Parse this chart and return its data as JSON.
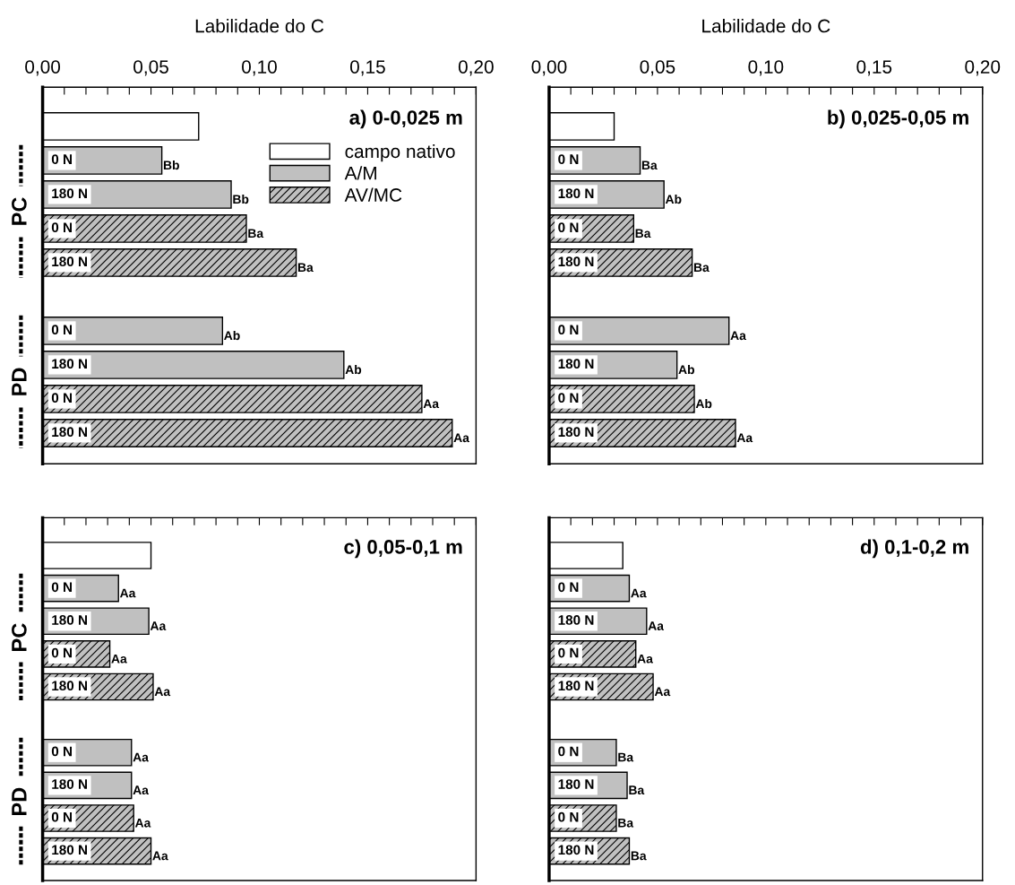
{
  "chart_data": [
    {
      "type": "bar",
      "orientation": "horizontal",
      "title": "a) 0-0,025 m",
      "xlabel": "Labilidade do C",
      "categories": [
        null,
        "0 N",
        "180 N",
        "0 N",
        "180 N",
        null,
        "0 N",
        "180 N",
        "0 N",
        "180 N"
      ],
      "series": [
        {
          "name": "campo nativo",
          "color": "#ffffff",
          "values": [
            0.072,
            null,
            null,
            null,
            null,
            null,
            null,
            null,
            null,
            null
          ]
        },
        {
          "name": "A/M",
          "color": "#c0c0c0",
          "values": [
            null,
            0.055,
            0.087,
            null,
            null,
            null,
            0.083,
            0.139,
            null,
            null
          ],
          "value_labels": [
            null,
            "Bb",
            "Bb",
            null,
            null,
            null,
            "Ab",
            "Ab",
            null,
            null
          ]
        },
        {
          "name": "AV/MC",
          "color": "#c0c0c0",
          "values": [
            null,
            null,
            null,
            0.094,
            0.117,
            null,
            null,
            null,
            0.175,
            0.189
          ],
          "value_labels": [
            null,
            null,
            null,
            "Ba",
            "Ba",
            null,
            null,
            null,
            "Aa",
            "Aa"
          ]
        }
      ],
      "xlim": [
        0,
        0.2
      ],
      "xticks": [
        {
          "value": 0,
          "label": "0,00"
        },
        {
          "value": 0.01,
          "label": null
        },
        {
          "value": 0.02,
          "label": null
        },
        {
          "value": 0.03,
          "label": null
        },
        {
          "value": 0.04,
          "label": null
        },
        {
          "value": 0.05,
          "label": "0,05"
        },
        {
          "value": 0.06,
          "label": null
        },
        {
          "value": 0.07,
          "label": null
        },
        {
          "value": 0.08,
          "label": null
        },
        {
          "value": 0.09,
          "label": null
        },
        {
          "value": 0.1,
          "label": "0,10"
        },
        {
          "value": 0.11,
          "label": null
        },
        {
          "value": 0.12,
          "label": null
        },
        {
          "value": 0.13,
          "label": null
        },
        {
          "value": 0.14,
          "label": null
        },
        {
          "value": 0.15,
          "label": "0,15"
        },
        {
          "value": 0.16,
          "label": null
        },
        {
          "value": 0.17,
          "label": null
        },
        {
          "value": 0.18,
          "label": null
        },
        {
          "value": 0.19,
          "label": null
        },
        {
          "value": 0.2,
          "label": "0,20"
        }
      ],
      "annotations": [
        "PC",
        "PD"
      ],
      "legend": "top right",
      "grid": false
    },
    {
      "type": "bar",
      "orientation": "horizontal",
      "title": "b) 0,025-0,05 m",
      "xlabel": "Labilidade do C",
      "categories": [
        null,
        "0 N",
        "180 N",
        "0 N",
        "180 N",
        null,
        "0 N",
        "180 N",
        "0 N",
        "180 N"
      ],
      "series": [
        {
          "color": "#ffffff",
          "values": [
            0.03,
            null,
            null,
            null,
            null,
            null,
            null,
            null,
            null,
            null
          ]
        },
        {
          "color": "#c0c0c0",
          "values": [
            null,
            0.042,
            0.053,
            null,
            null,
            null,
            0.083,
            0.059,
            null,
            null
          ],
          "value_labels": [
            null,
            "Ba",
            "Ab",
            null,
            null,
            null,
            "Aa",
            "Ab",
            null,
            null
          ]
        },
        {
          "color": "#c0c0c0",
          "values": [
            null,
            null,
            null,
            0.039,
            0.066,
            null,
            null,
            null,
            0.067,
            0.086
          ],
          "value_labels": [
            null,
            null,
            null,
            "Ba",
            "Ba",
            null,
            null,
            null,
            "Ab",
            "Aa"
          ]
        }
      ],
      "xlim": [
        0,
        0.2
      ],
      "xticks": [
        {
          "value": 0,
          "label": "0,00"
        },
        {
          "value": 0.01,
          "label": null
        },
        {
          "value": 0.02,
          "label": null
        },
        {
          "value": 0.03,
          "label": null
        },
        {
          "value": 0.04,
          "label": null
        },
        {
          "value": 0.05,
          "label": "0,05"
        },
        {
          "value": 0.06,
          "label": null
        },
        {
          "value": 0.07,
          "label": null
        },
        {
          "value": 0.08,
          "label": null
        },
        {
          "value": 0.09,
          "label": null
        },
        {
          "value": 0.1,
          "label": "0,10"
        },
        {
          "value": 0.11,
          "label": null
        },
        {
          "value": 0.12,
          "label": null
        },
        {
          "value": 0.13,
          "label": null
        },
        {
          "value": 0.14,
          "label": null
        },
        {
          "value": 0.15,
          "label": "0,15"
        },
        {
          "value": 0.16,
          "label": null
        },
        {
          "value": 0.17,
          "label": null
        },
        {
          "value": 0.18,
          "label": null
        },
        {
          "value": 0.19,
          "label": null
        },
        {
          "value": 0.2,
          "label": "0,20"
        }
      ],
      "grid": false
    },
    {
      "type": "bar",
      "orientation": "horizontal",
      "title": "c) 0,05-0,1 m",
      "categories": [
        null,
        "0 N",
        "180 N",
        "0 N",
        "180 N",
        null,
        "0 N",
        "180 N",
        "0 N",
        "180 N"
      ],
      "series": [
        {
          "color": "#ffffff",
          "values": [
            0.05,
            null,
            null,
            null,
            null,
            null,
            null,
            null,
            null,
            null
          ]
        },
        {
          "color": "#c0c0c0",
          "values": [
            null,
            0.035,
            0.049,
            null,
            null,
            null,
            0.041,
            0.041,
            null,
            null
          ],
          "value_labels": [
            null,
            "Aa",
            "Aa",
            null,
            null,
            null,
            "Aa",
            "Aa",
            null,
            null
          ]
        },
        {
          "color": "#c0c0c0",
          "values": [
            null,
            null,
            null,
            0.031,
            0.051,
            null,
            null,
            null,
            0.042,
            0.05
          ],
          "value_labels": [
            null,
            null,
            null,
            "Aa",
            "Aa",
            null,
            null,
            null,
            "Aa",
            "Aa"
          ]
        }
      ],
      "xlim": [
        0,
        0.2
      ],
      "xticks": [
        {
          "value": 0,
          "label": null
        },
        {
          "value": 0.01,
          "label": null
        },
        {
          "value": 0.02,
          "label": null
        },
        {
          "value": 0.03,
          "label": null
        },
        {
          "value": 0.04,
          "label": null
        },
        {
          "value": 0.05,
          "label": null
        },
        {
          "value": 0.06,
          "label": null
        },
        {
          "value": 0.07,
          "label": null
        },
        {
          "value": 0.08,
          "label": null
        },
        {
          "value": 0.09,
          "label": null
        },
        {
          "value": 0.1,
          "label": null
        },
        {
          "value": 0.11,
          "label": null
        },
        {
          "value": 0.12,
          "label": null
        },
        {
          "value": 0.13,
          "label": null
        },
        {
          "value": 0.14,
          "label": null
        },
        {
          "value": 0.15,
          "label": null
        },
        {
          "value": 0.16,
          "label": null
        },
        {
          "value": 0.17,
          "label": null
        },
        {
          "value": 0.18,
          "label": null
        },
        {
          "value": 0.19,
          "label": null
        },
        {
          "value": 0.2,
          "label": null
        }
      ],
      "tick_labels": "y",
      "annotations": [
        "PC",
        "PD"
      ],
      "grid": false
    },
    {
      "type": "bar",
      "orientation": "horizontal",
      "title": "d) 0,1-0,2 m",
      "categories": [
        null,
        "0 N",
        "180 N",
        "0 N",
        "180 N",
        null,
        "0 N",
        "180 N",
        "0 N",
        "180 N"
      ],
      "series": [
        {
          "color": "#ffffff",
          "values": [
            0.034,
            null,
            null,
            null,
            null,
            null,
            null,
            null,
            null,
            null
          ]
        },
        {
          "color": "#c0c0c0",
          "values": [
            null,
            0.037,
            0.045,
            null,
            null,
            null,
            0.031,
            0.036,
            null,
            null
          ],
          "value_labels": [
            null,
            "Aa",
            "Aa",
            null,
            null,
            null,
            "Ba",
            "Ba",
            null,
            null
          ]
        },
        {
          "color": "#c0c0c0",
          "values": [
            null,
            null,
            null,
            0.04,
            0.048,
            null,
            null,
            null,
            0.031,
            0.037
          ],
          "value_labels": [
            null,
            null,
            null,
            "Aa",
            "Aa",
            null,
            null,
            null,
            "Ba",
            "Ba"
          ]
        }
      ],
      "xlim": [
        0,
        0.2
      ],
      "xticks": [
        {
          "value": 0,
          "label": null
        },
        {
          "value": 0.01,
          "label": null
        },
        {
          "value": 0.02,
          "label": null
        },
        {
          "value": 0.03,
          "label": null
        },
        {
          "value": 0.04,
          "label": null
        },
        {
          "value": 0.05,
          "label": null
        },
        {
          "value": 0.06,
          "label": null
        },
        {
          "value": 0.07,
          "label": null
        },
        {
          "value": 0.08,
          "label": null
        },
        {
          "value": 0.09,
          "label": null
        },
        {
          "value": 0.1,
          "label": null
        },
        {
          "value": 0.11,
          "label": null
        },
        {
          "value": 0.12,
          "label": null
        },
        {
          "value": 0.13,
          "label": null
        },
        {
          "value": 0.14,
          "label": null
        },
        {
          "value": 0.15,
          "label": null
        },
        {
          "value": 0.16,
          "label": null
        },
        {
          "value": 0.17,
          "label": null
        },
        {
          "value": 0.18,
          "label": null
        },
        {
          "value": 0.19,
          "label": null
        },
        {
          "value": 0.2,
          "label": null
        }
      ],
      "tick_labels": "y",
      "grid": false
    }
  ]
}
